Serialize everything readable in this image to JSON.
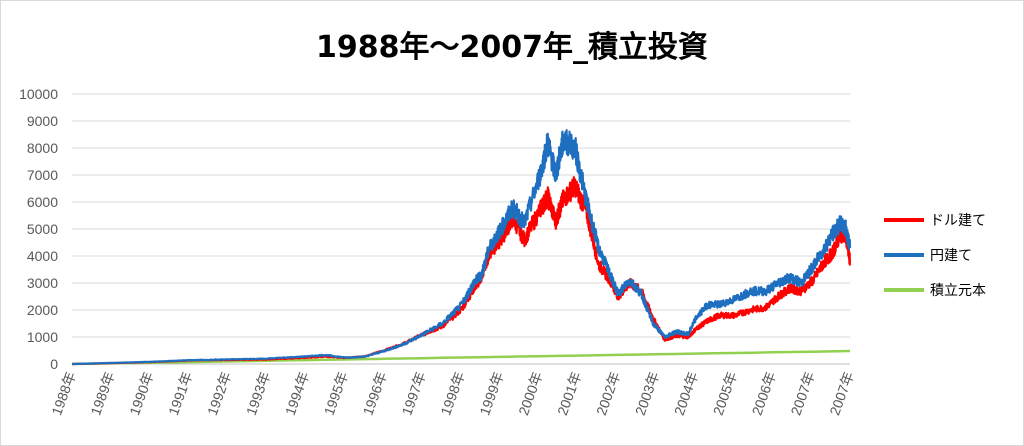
{
  "chart_data": {
    "type": "line",
    "title": "1988年〜2007年_積立投資",
    "ylim": [
      0,
      10000
    ],
    "yticks": [
      0,
      1000,
      2000,
      3000,
      4000,
      5000,
      6000,
      7000,
      8000,
      9000,
      10000
    ],
    "xlim": [
      1988,
      2007.95
    ],
    "xticks": [
      "1988年",
      "1989年",
      "1990年",
      "1991年",
      "1992年",
      "1993年",
      "1994年",
      "1995年",
      "1996年",
      "1997年",
      "1998年",
      "1999年",
      "2000年",
      "2001年",
      "2002年",
      "2003年",
      "2004年",
      "2005年",
      "2006年",
      "2007年",
      "2007年"
    ],
    "grid": true,
    "legend_position": "right",
    "series": [
      {
        "name": "ドル建て",
        "color": "#ff0000",
        "x": [
          1988.0,
          1989.0,
          1990.0,
          1990.5,
          1991.0,
          1992.0,
          1993.0,
          1994.0,
          1994.5,
          1995.0,
          1995.5,
          1996.0,
          1996.5,
          1997.0,
          1997.5,
          1998.0,
          1998.3,
          1998.5,
          1998.7,
          1999.0,
          1999.3,
          1999.6,
          2000.0,
          2000.2,
          2000.4,
          2000.6,
          2000.9,
          2001.2,
          2001.5,
          2001.8,
          2002.0,
          2002.3,
          2002.6,
          2002.9,
          2003.2,
          2003.5,
          2003.8,
          2004.0,
          2004.3,
          2004.6,
          2005.0,
          2005.4,
          2005.8,
          2006.1,
          2006.4,
          2006.7,
          2007.0,
          2007.3,
          2007.5,
          2007.7,
          2007.85,
          2007.95
        ],
        "values": [
          0,
          30,
          70,
          100,
          130,
          150,
          170,
          230,
          280,
          230,
          280,
          500,
          750,
          1100,
          1400,
          2050,
          2800,
          3200,
          4100,
          4600,
          5400,
          4600,
          5700,
          6200,
          5300,
          6100,
          6600,
          5600,
          3700,
          3100,
          2500,
          3000,
          2700,
          1700,
          900,
          1050,
          1000,
          1300,
          1600,
          1800,
          1800,
          2000,
          2100,
          2500,
          2800,
          2700,
          3100,
          3800,
          4100,
          4800,
          4700,
          3800
        ]
      },
      {
        "name": "円建て",
        "color": "#1f6fc0",
        "x": [
          1988.0,
          1989.0,
          1990.0,
          1990.5,
          1991.0,
          1992.0,
          1993.0,
          1994.0,
          1994.5,
          1995.0,
          1995.5,
          1996.0,
          1996.5,
          1997.0,
          1997.5,
          1998.0,
          1998.3,
          1998.5,
          1998.7,
          1999.0,
          1999.3,
          1999.6,
          2000.0,
          2000.2,
          2000.4,
          2000.6,
          2000.9,
          2001.2,
          2001.5,
          2001.8,
          2002.0,
          2002.3,
          2002.6,
          2002.9,
          2003.2,
          2003.5,
          2003.8,
          2004.0,
          2004.3,
          2004.6,
          2005.0,
          2005.4,
          2005.8,
          2006.1,
          2006.4,
          2006.7,
          2007.0,
          2007.3,
          2007.5,
          2007.7,
          2007.85,
          2007.95
        ],
        "values": [
          0,
          40,
          80,
          110,
          140,
          170,
          200,
          280,
          330,
          240,
          270,
          480,
          730,
          1100,
          1500,
          2200,
          3000,
          3300,
          4300,
          5000,
          5800,
          5200,
          7000,
          8200,
          7000,
          8300,
          8000,
          6000,
          4300,
          3300,
          2600,
          3100,
          2600,
          1500,
          1000,
          1200,
          1100,
          1700,
          2200,
          2200,
          2400,
          2700,
          2700,
          3000,
          3200,
          3000,
          3600,
          4300,
          4800,
          5200,
          5000,
          4300
        ]
      },
      {
        "name": "積立元本",
        "color": "#92d050",
        "x": [
          1988.0,
          2007.95
        ],
        "values": [
          0,
          480
        ]
      }
    ]
  }
}
